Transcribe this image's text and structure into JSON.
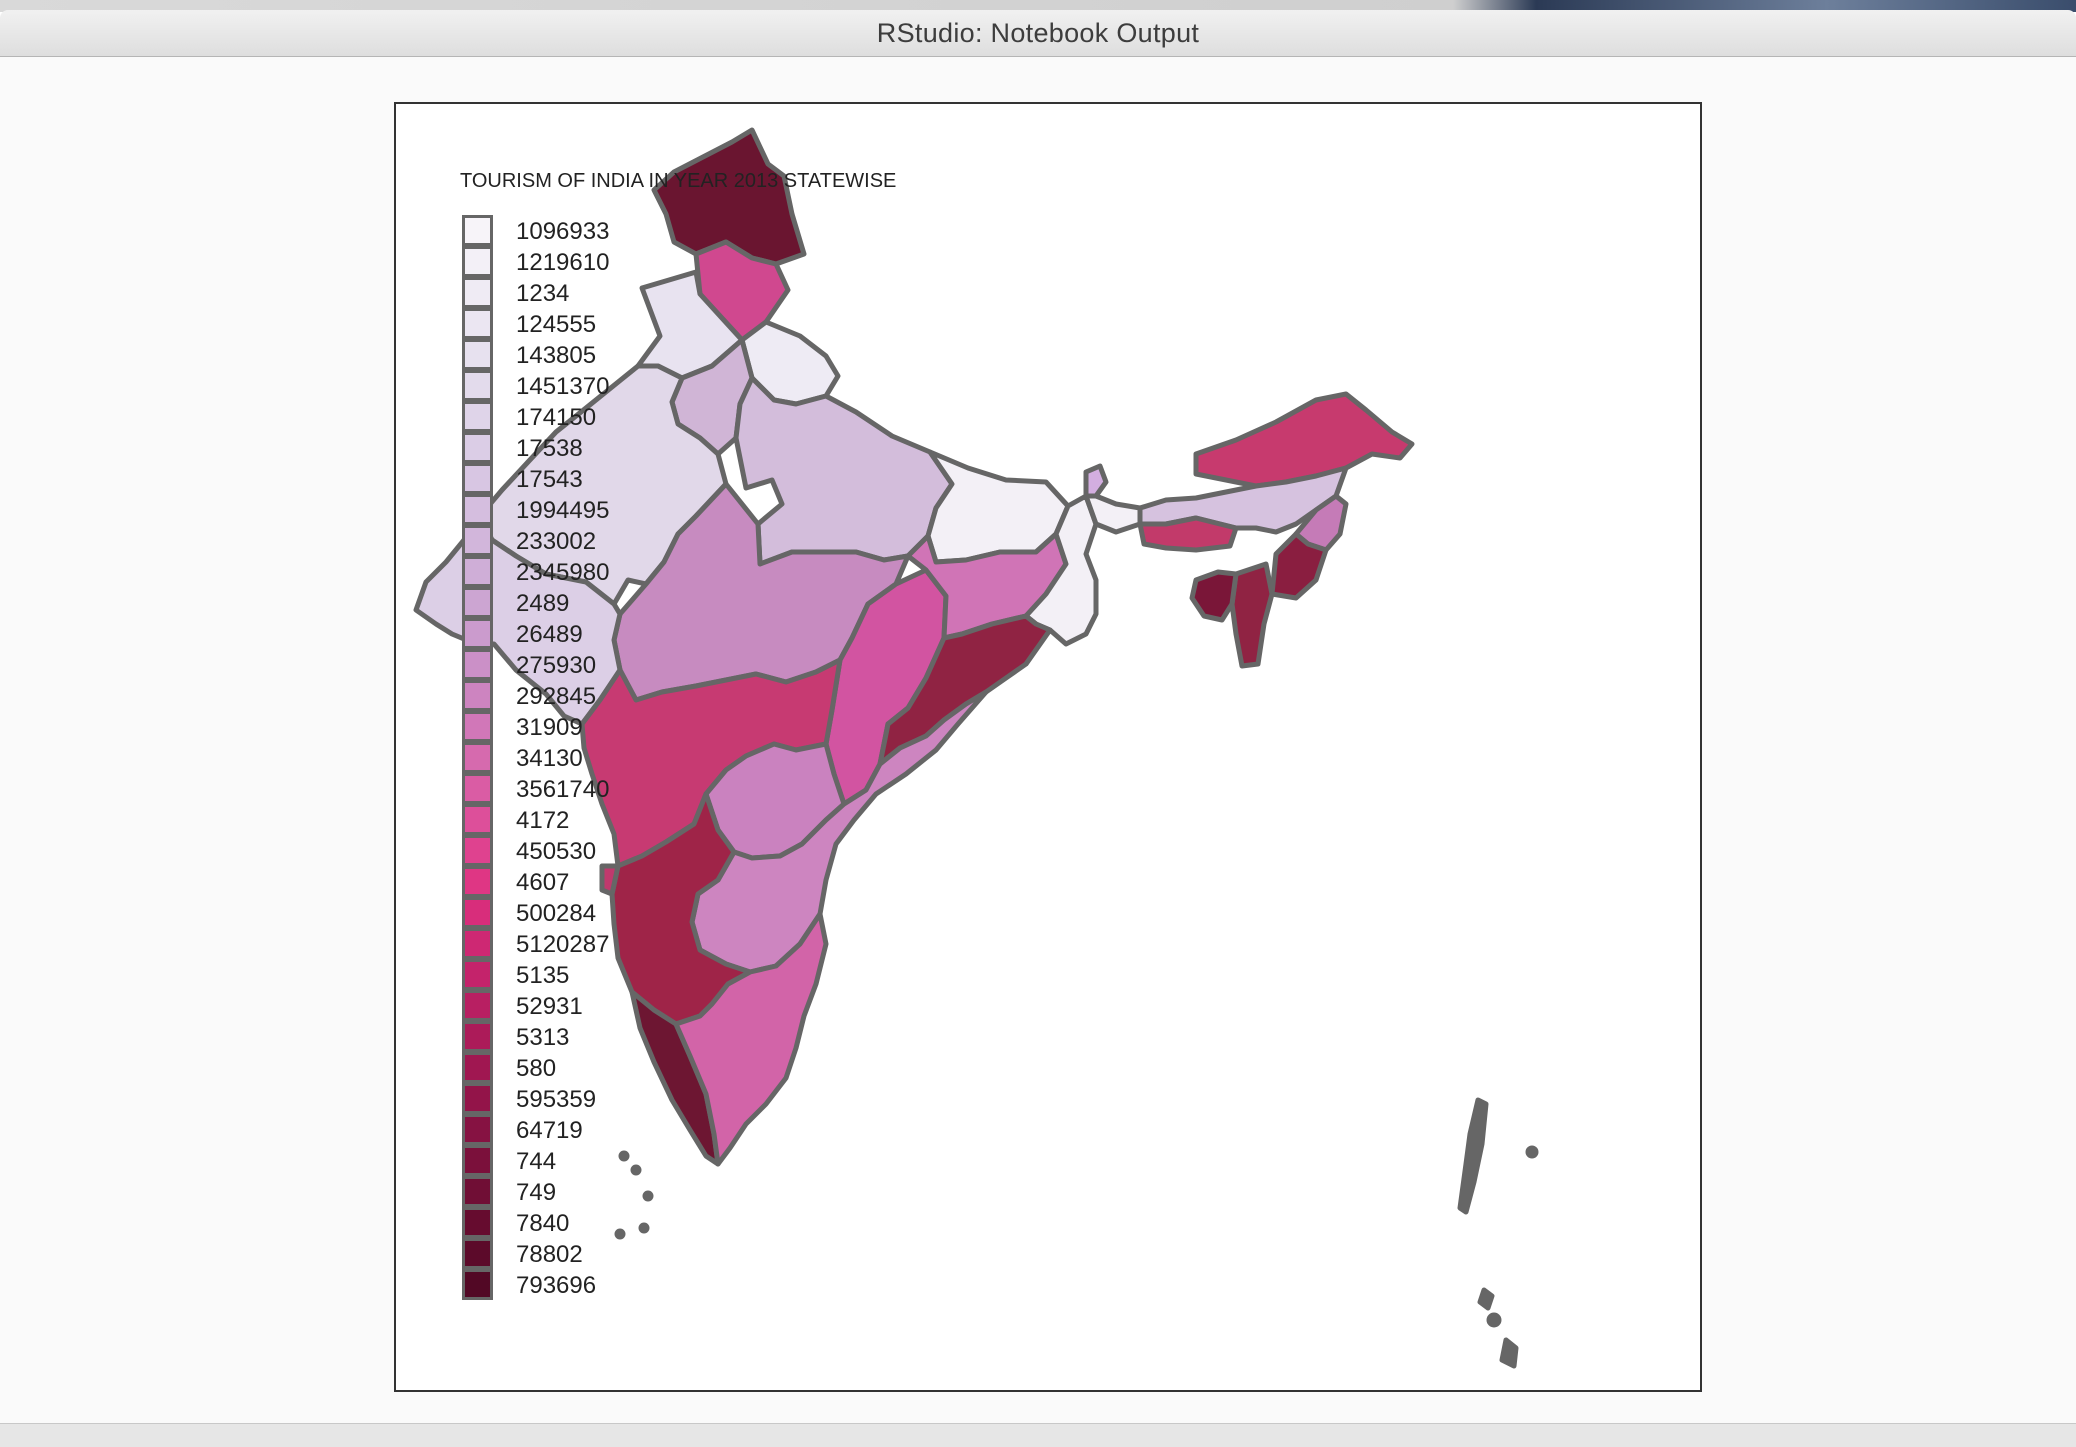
{
  "window": {
    "title": "RStudio: Notebook Output"
  },
  "map": {
    "title": "TOURISM OF INDIA IN YEAR 2013 STATEWISE",
    "legend": [
      {
        "label": "1096933",
        "color": "#f7f4f9"
      },
      {
        "label": "1219610",
        "color": "#f3f0f7"
      },
      {
        "label": "1234",
        "color": "#efebf4"
      },
      {
        "label": "124555",
        "color": "#ebe6f2"
      },
      {
        "label": "143805",
        "color": "#e7e1ef"
      },
      {
        "label": "1451370",
        "color": "#e3dbec"
      },
      {
        "label": "174150",
        "color": "#dfd4e9"
      },
      {
        "label": "17538",
        "color": "#dbcde6"
      },
      {
        "label": "17543",
        "color": "#d8c6e3"
      },
      {
        "label": "1994495",
        "color": "#d5bedf"
      },
      {
        "label": "233002",
        "color": "#d2b6db"
      },
      {
        "label": "2345980",
        "color": "#cfaed7"
      },
      {
        "label": "2489",
        "color": "#cca5d2"
      },
      {
        "label": "26489",
        "color": "#cb9bcd"
      },
      {
        "label": "275930",
        "color": "#cb90c7"
      },
      {
        "label": "292845",
        "color": "#cd84c0"
      },
      {
        "label": "31909",
        "color": "#d177b8"
      },
      {
        "label": "34130",
        "color": "#d66aae"
      },
      {
        "label": "3561740",
        "color": "#da5ca4"
      },
      {
        "label": "4172",
        "color": "#dd4f9a"
      },
      {
        "label": "450530",
        "color": "#df428f"
      },
      {
        "label": "4607",
        "color": "#df3684"
      },
      {
        "label": "500284",
        "color": "#d82d7b"
      },
      {
        "label": "5120287",
        "color": "#ce2873"
      },
      {
        "label": "5135",
        "color": "#c4236b"
      },
      {
        "label": "52931",
        "color": "#b81f62"
      },
      {
        "label": "5313",
        "color": "#ac1b59"
      },
      {
        "label": "580",
        "color": "#a01751"
      },
      {
        "label": "595359",
        "color": "#931449"
      },
      {
        "label": "64719",
        "color": "#861242"
      },
      {
        "label": "744",
        "color": "#7b103b"
      },
      {
        "label": "749",
        "color": "#700e35"
      },
      {
        "label": "7840",
        "color": "#660c2f"
      },
      {
        "label": "78802",
        "color": "#5c0a2a"
      },
      {
        "label": "793696",
        "color": "#520825"
      }
    ],
    "region_colors": {
      "jammu_kashmir": "#6a1530",
      "himachal": "#d0488f",
      "punjab": "#e8e3f0",
      "uttarakhand": "#eeebf4",
      "haryana": "#d0b5d6",
      "rajasthan": "#e1d8e9",
      "uttar_pradesh": "#d3bddb",
      "bihar": "#f3f0f6",
      "madhya_pradesh": "#c78bc0",
      "gujarat": "#dccfe6",
      "chhattisgarh": "#d254a1",
      "jharkhand": "#d074b6",
      "west_bengal": "#f3f0f6",
      "odisha": "#902343",
      "maharashtra": "#c73a72",
      "telangana": "#ca82bf",
      "andhra": "#cd85c0",
      "karnataka": "#9f2448",
      "goa": "#c0396d",
      "kerala": "#6d1632",
      "tamil_nadu": "#d264a8",
      "sikkim": "#d3aee0",
      "ne_arunachal": "#c73a6e",
      "assam": "#d6c2df",
      "meghalaya": "#c23a6a",
      "nagaland": "#c57bb7",
      "manipur": "#8a1e40",
      "mizoram": "#902343",
      "tripura": "#7a1638",
      "outline": "#666666"
    }
  }
}
